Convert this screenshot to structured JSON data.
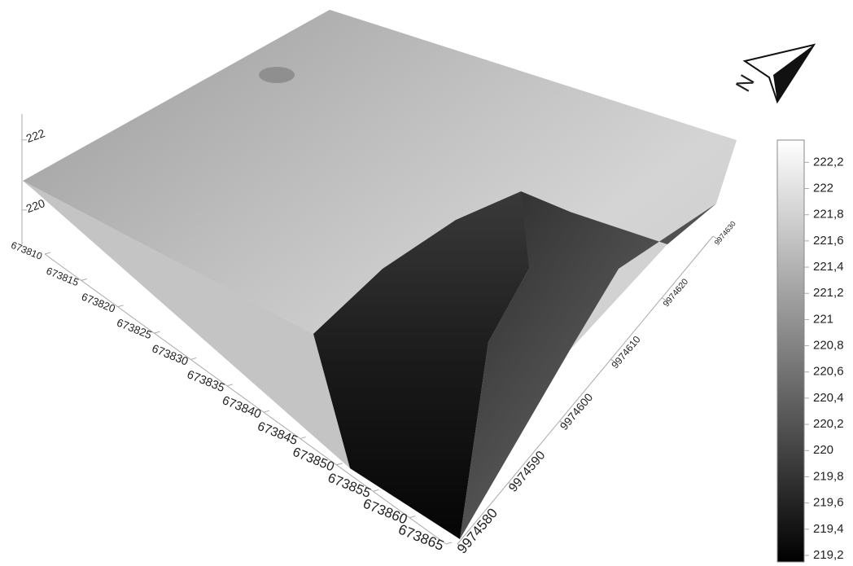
{
  "chart_data": {
    "type": "surface",
    "north_label": "N",
    "xticks": [
      673810,
      673815,
      673820,
      673825,
      673830,
      673835,
      673840,
      673845,
      673850,
      673855,
      673860,
      673865
    ],
    "xlim": [
      673810,
      673865
    ],
    "yticks": [
      9974580,
      9974590,
      9974600,
      9974610,
      9974620,
      9974630
    ],
    "ylim": [
      9974580,
      9974630
    ],
    "zticks": [
      220,
      222
    ],
    "zlim": [
      219.02,
      222.74
    ],
    "colormap": [
      "#000000",
      "#ffffff"
    ],
    "colorbar": {
      "lim": [
        219.15,
        222.37
      ],
      "ticks": [
        {
          "value": 222.2,
          "label": "222,2"
        },
        {
          "value": 222,
          "label": "222"
        },
        {
          "value": 221.8,
          "label": "221,8"
        },
        {
          "value": 221.6,
          "label": "221,6"
        },
        {
          "value": 221.4,
          "label": "221,4"
        },
        {
          "value": 221.2,
          "label": "221,2"
        },
        {
          "value": 221,
          "label": "221"
        },
        {
          "value": 220.8,
          "label": "220,8"
        },
        {
          "value": 220.6,
          "label": "220,6"
        },
        {
          "value": 220.4,
          "label": "220,4"
        },
        {
          "value": 220.2,
          "label": "220,2"
        },
        {
          "value": 220,
          "label": "220"
        },
        {
          "value": 219.8,
          "label": "219,8"
        },
        {
          "value": 219.6,
          "label": "219,6"
        },
        {
          "value": 219.4,
          "label": "219,4"
        },
        {
          "value": 219.2,
          "label": "219,2"
        }
      ]
    }
  }
}
